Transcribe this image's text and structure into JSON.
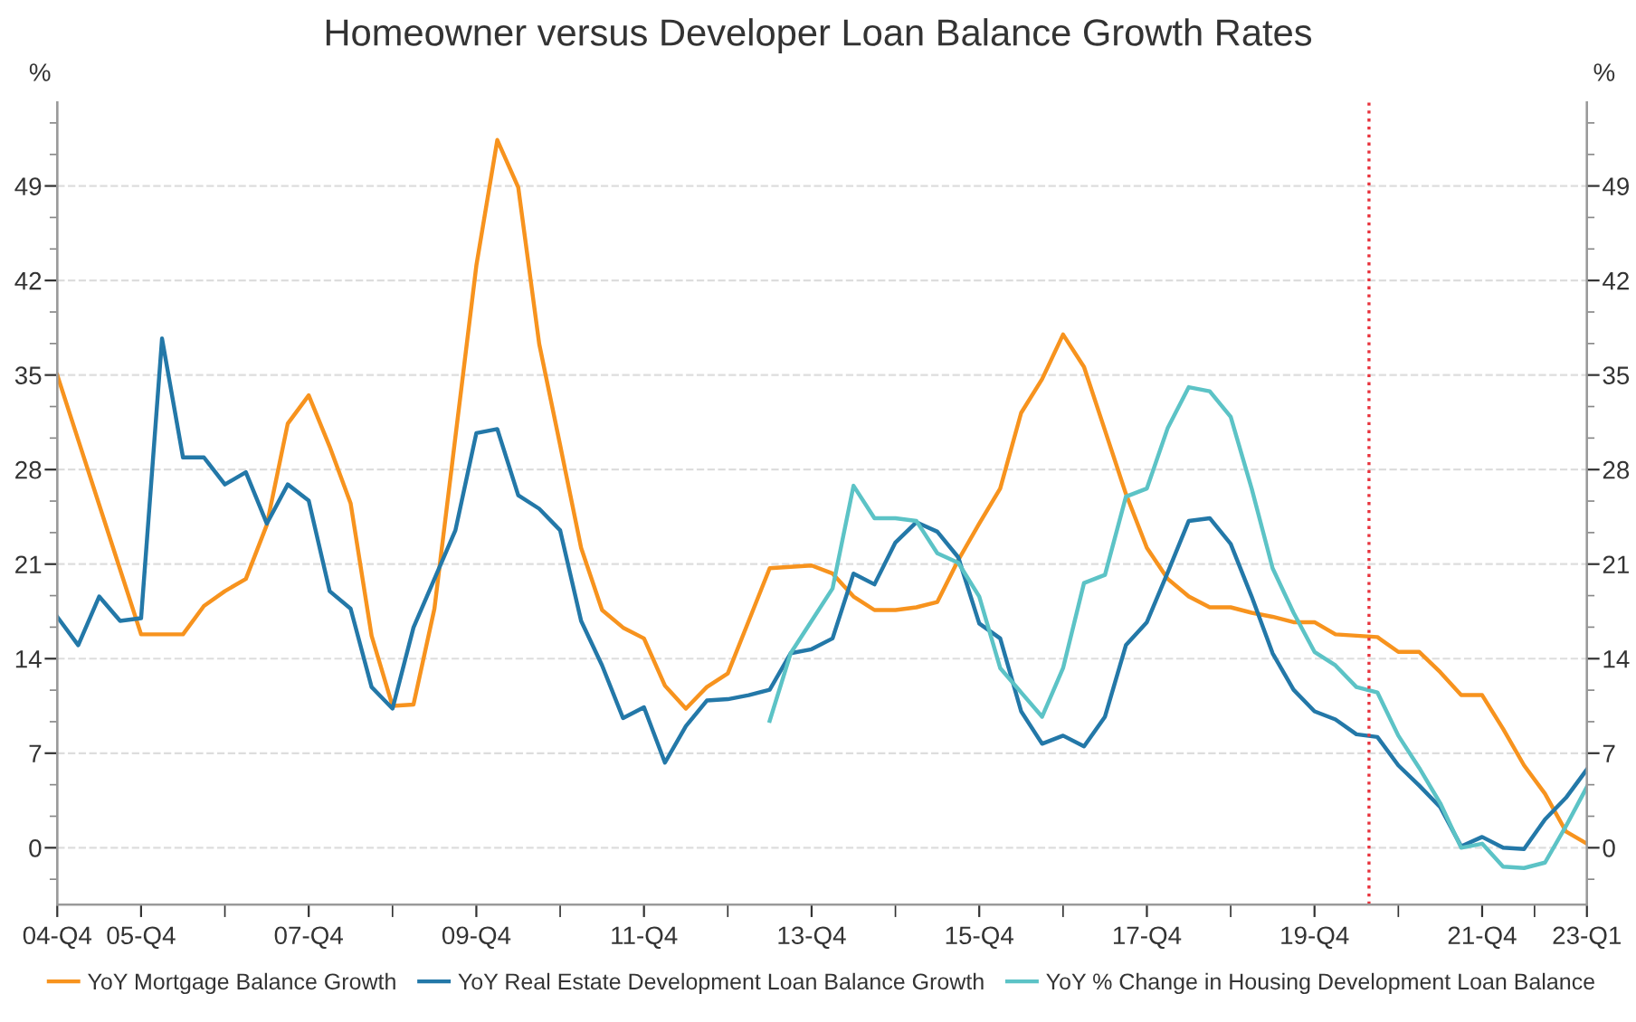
{
  "chart_data": {
    "type": "line",
    "title": "Homeowner versus Developer Loan Balance Growth Rates",
    "ylabel": "%",
    "y2label": "%",
    "categories": [
      "04-Q4",
      null,
      null,
      null,
      "05-Q4",
      null,
      null,
      null,
      null,
      null,
      null,
      null,
      "07-Q4",
      null,
      null,
      null,
      null,
      null,
      null,
      null,
      "09-Q4",
      null,
      null,
      null,
      null,
      null,
      null,
      null,
      "11-Q4",
      null,
      null,
      null,
      null,
      null,
      null,
      null,
      "13-Q4",
      null,
      null,
      null,
      null,
      null,
      null,
      null,
      "15-Q4",
      null,
      null,
      null,
      null,
      null,
      null,
      null,
      "17-Q4",
      null,
      null,
      null,
      null,
      null,
      null,
      null,
      "19-Q4",
      null,
      null,
      null,
      null,
      null,
      null,
      null,
      "21-Q4",
      null,
      null,
      null,
      null,
      "23-Q1"
    ],
    "series": [
      {
        "name": "YoY Mortgage Balance Growth",
        "color": "#f7931e",
        "values": [
          35.0,
          30.2,
          25.4,
          20.6,
          15.8,
          15.8,
          15.8,
          17.9,
          19.0,
          19.9,
          23.9,
          31.4,
          33.5,
          29.7,
          25.5,
          15.7,
          10.5,
          10.6,
          17.7,
          30.4,
          43.1,
          52.4,
          48.9,
          37.3,
          29.8,
          22.2,
          17.6,
          16.3,
          15.5,
          12.0,
          10.3,
          11.9,
          12.9,
          16.8,
          20.7,
          20.8,
          20.9,
          20.3,
          18.6,
          17.6,
          17.6,
          17.8,
          18.2,
          21.3,
          24.0,
          26.6,
          32.2,
          34.7,
          38.0,
          35.6,
          30.9,
          26.2,
          22.2,
          19.9,
          18.6,
          17.8,
          17.8,
          17.4,
          17.1,
          16.7,
          16.7,
          15.8,
          15.7,
          15.6,
          14.5,
          14.5,
          13.0,
          11.3,
          11.3,
          8.8,
          6.1,
          4.0,
          1.2,
          0.3
        ]
      },
      {
        "name": "YoY Real Estate Development Loan Balance Growth",
        "color": "#2378a8",
        "values": [
          17.1,
          15.0,
          18.6,
          16.8,
          17.0,
          37.7,
          28.9,
          28.9,
          26.9,
          27.8,
          24.0,
          26.9,
          25.7,
          19.0,
          17.7,
          11.9,
          10.3,
          16.3,
          19.9,
          23.5,
          30.7,
          31.0,
          26.1,
          25.1,
          23.5,
          16.8,
          13.5,
          9.6,
          10.4,
          6.3,
          9.0,
          10.9,
          11.0,
          11.3,
          11.7,
          14.4,
          14.7,
          15.5,
          20.3,
          19.5,
          22.6,
          24.1,
          23.4,
          21.5,
          16.6,
          15.5,
          10.1,
          7.7,
          8.3,
          7.5,
          9.7,
          15.0,
          16.7,
          20.4,
          24.2,
          24.4,
          22.5,
          18.6,
          14.4,
          11.7,
          10.1,
          9.5,
          8.4,
          8.2,
          6.1,
          4.6,
          3.0,
          0.1,
          0.8,
          0.0,
          -0.1,
          2.1,
          3.7,
          5.8
        ]
      },
      {
        "name": "YoY % Change in Housing Development Loan Balance",
        "color": "#5cc3c6",
        "values": [
          null,
          null,
          null,
          null,
          null,
          null,
          null,
          null,
          null,
          null,
          null,
          null,
          null,
          null,
          null,
          null,
          null,
          null,
          null,
          null,
          null,
          null,
          null,
          null,
          null,
          null,
          null,
          null,
          null,
          null,
          null,
          null,
          null,
          null,
          9.4,
          14.4,
          16.8,
          19.2,
          26.8,
          24.4,
          24.4,
          24.2,
          21.8,
          21.1,
          18.6,
          13.3,
          11.5,
          9.7,
          13.3,
          19.6,
          20.2,
          26.0,
          26.6,
          31.1,
          34.1,
          33.8,
          31.9,
          26.6,
          20.7,
          17.4,
          14.5,
          13.5,
          11.9,
          11.5,
          8.3,
          5.9,
          3.3,
          0.0,
          0.3,
          -1.4,
          -1.5,
          -1.1,
          1.6,
          4.5
        ]
      }
    ],
    "ylim": [
      -4.2,
      55.2
    ],
    "yticks": [
      0,
      7,
      14,
      21,
      28,
      35,
      42,
      49
    ],
    "y2lim": [
      -4.2,
      55.2
    ],
    "y2ticks": [
      0,
      7,
      14,
      21,
      28,
      35,
      42,
      49
    ],
    "grid": "y",
    "legend": "bottom",
    "marker": "none",
    "line_style": "solid"
  }
}
